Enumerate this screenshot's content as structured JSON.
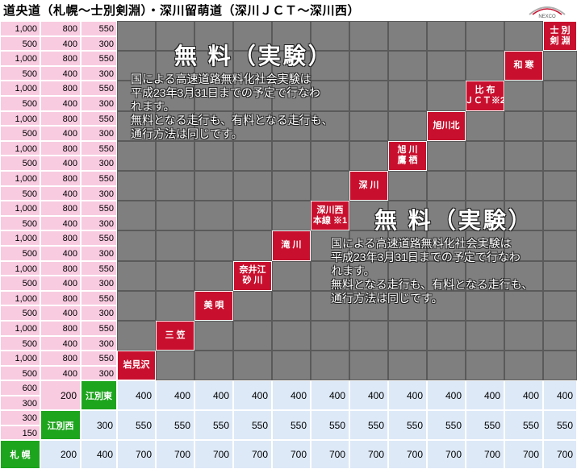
{
  "title": "道央道（札幌～士別剣淵）・深川留萌道（深川ＪＣＴ～深川西）",
  "logo_text": "NEXCO",
  "stations": [
    "士 別\n剣 淵",
    "和 寒",
    "比 布\nＪＣＴ※2",
    "旭川北",
    "旭 川\n鷹 栖",
    "深 川",
    "深川西\n本線 ※1",
    "滝 川",
    "奈井江\n砂 川",
    "美 唄",
    "三 笠",
    "岩見沢"
  ],
  "tiered_rows": [
    [
      "1,000",
      "500",
      "800",
      "400",
      "550",
      "300"
    ],
    [
      "1,000",
      "500",
      "800",
      "400",
      "550",
      "300"
    ],
    [
      "1,000",
      "500",
      "800",
      "400",
      "550",
      "300"
    ],
    [
      "1,000",
      "500",
      "800",
      "400",
      "550",
      "300"
    ],
    [
      "1,000",
      "500",
      "800",
      "400",
      "550",
      "300"
    ],
    [
      "1,000",
      "500",
      "800",
      "400",
      "550",
      "300"
    ],
    [
      "1,000",
      "500",
      "800",
      "400",
      "550",
      "300"
    ],
    [
      "1,000",
      "500",
      "800",
      "400",
      "550",
      "300"
    ],
    [
      "1,000",
      "500",
      "800",
      "400",
      "550",
      "300"
    ],
    [
      "1,000",
      "500",
      "800",
      "400",
      "550",
      "300"
    ],
    [
      "1,000",
      "500",
      "800",
      "400",
      "550",
      "300"
    ],
    [
      "1,000",
      "500",
      "800",
      "400",
      "550",
      "300"
    ]
  ],
  "ebetsu_higashi_row": {
    "left_top": "600",
    "left_bottom": "300",
    "mid": "200",
    "station": "江別東",
    "values": [
      "400",
      "400",
      "400",
      "400",
      "400",
      "400",
      "400",
      "400",
      "400",
      "400",
      "400",
      "400"
    ]
  },
  "ebetsu_nishi_row": {
    "left_top": "300",
    "left_bottom": "150",
    "station": "江別西",
    "mid": "300",
    "values": [
      "550",
      "550",
      "550",
      "550",
      "550",
      "550",
      "550",
      "550",
      "550",
      "550",
      "550",
      "550"
    ]
  },
  "sapporo_row": {
    "station": "札 幌",
    "v1": "200",
    "v2": "400",
    "values": [
      "700",
      "700",
      "700",
      "700",
      "700",
      "700",
      "700",
      "700",
      "700",
      "700",
      "700",
      "700"
    ]
  },
  "notice": {
    "heading": "無 料（実験）",
    "body": "国による高速道路無料化社会実験は\n平成23年3月31日までの予定で行なわ\nれます。\n無料となる走行も、有料となる走行も、\n通行方法は同じです。"
  },
  "colors": {
    "pink": "#f8cbe0",
    "gray": "#7f7f7f",
    "red": "#c8102e",
    "green": "#1ea51e",
    "blue": "#dde9f7"
  }
}
